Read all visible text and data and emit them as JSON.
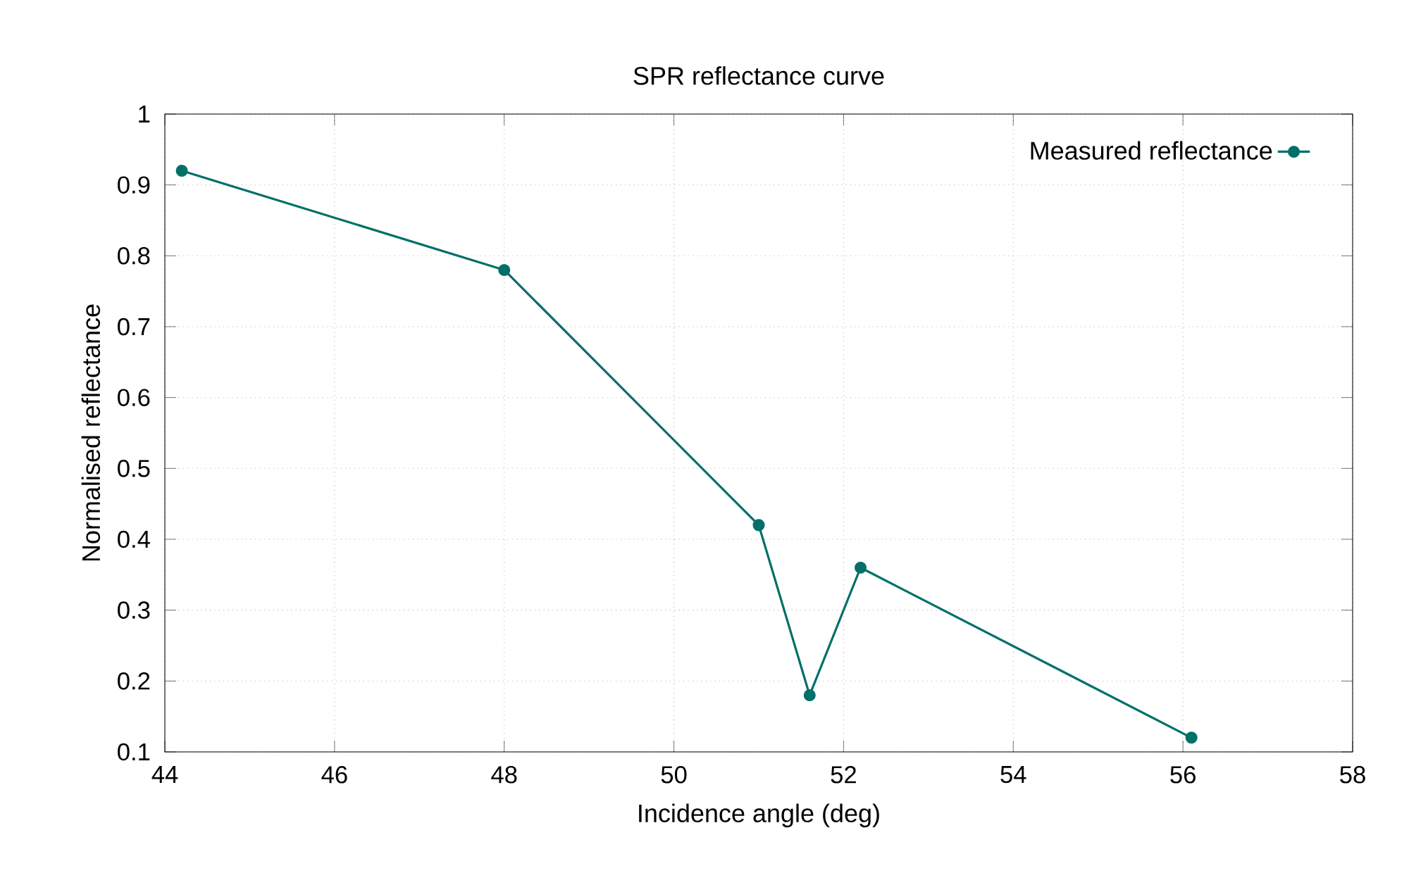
{
  "chart_data": {
    "type": "line",
    "title": "SPR reflectance curve",
    "xlabel": "Incidence angle (deg)",
    "ylabel": "Normalised reflectance",
    "x": [
      44.2,
      48,
      51,
      51.6,
      52.2,
      56.1
    ],
    "series": [
      {
        "name": "Measured reflectance",
        "color": "#007068",
        "values": [
          0.92,
          0.78,
          0.42,
          0.18,
          0.36,
          0.12
        ]
      }
    ],
    "xlim": [
      44,
      58
    ],
    "xticks": [
      44,
      46,
      48,
      50,
      52,
      54,
      56,
      58
    ],
    "ylim": [
      0.1,
      1
    ],
    "yticks": [
      0.1,
      0.2,
      0.3,
      0.4,
      0.5,
      0.6,
      0.7,
      0.8,
      0.9,
      1
    ],
    "grid": true,
    "legend": "top right",
    "marker": "circle",
    "line_style": "solid"
  }
}
